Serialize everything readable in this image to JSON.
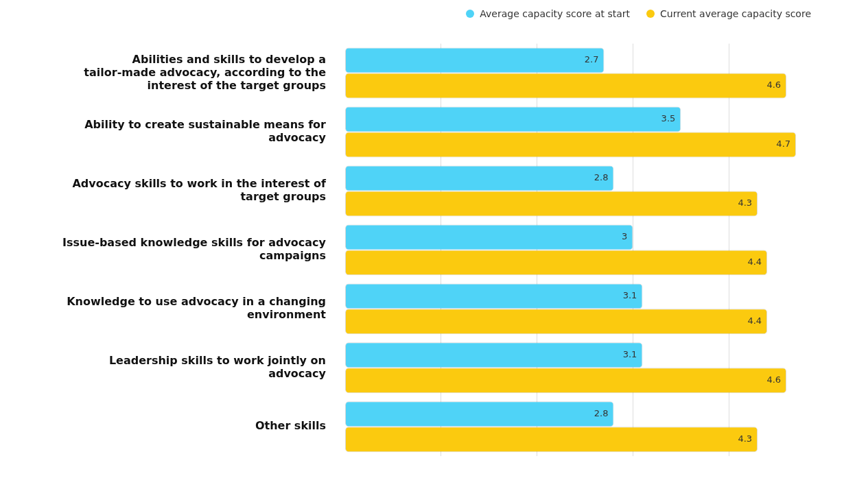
{
  "chart_data": {
    "type": "bar",
    "orientation": "horizontal",
    "categories": [
      "Abilities and skills to develop a tailor-made advocacy, according to the interest of the target groups",
      "Ability to create sustainable means for advocacy",
      "Advocacy skills to work in the interest of target groups",
      "Issue-based knowledge skills for advocacy campaigns",
      "Knowledge to use advocacy in a changing environment",
      "Leadership skills to work jointly on advocacy",
      "Other skills"
    ],
    "series": [
      {
        "name": "Average capacity score at start",
        "color": "#4fd3f7",
        "values": [
          2.7,
          3.5,
          2.8,
          3,
          3.1,
          3.1,
          2.8
        ]
      },
      {
        "name": "Current average capacity score",
        "color": "#fbca0f",
        "values": [
          4.6,
          4.7,
          4.3,
          4.4,
          4.4,
          4.6,
          4.3
        ]
      }
    ],
    "xticks": [
      {
        "value": 1,
        "label": null
      },
      {
        "value": 2,
        "label": null
      },
      {
        "value": 3,
        "label": null
      },
      {
        "value": 4,
        "label": null
      }
    ],
    "grid": "x",
    "legend": "top right",
    "marker": "circle",
    "tick_labels": "y",
    "data_labels": true
  }
}
